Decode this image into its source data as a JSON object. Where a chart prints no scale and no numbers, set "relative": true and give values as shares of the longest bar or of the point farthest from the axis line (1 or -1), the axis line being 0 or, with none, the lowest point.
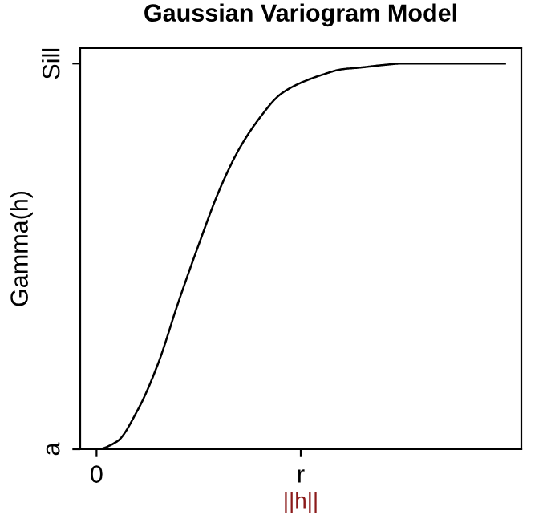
{
  "chart_data": {
    "type": "line",
    "title": "Gaussian Variogram Model",
    "xlabel": "||h||",
    "ylabel": "Gamma(h)",
    "relative": true,
    "categories": [
      "0",
      null,
      null,
      null,
      null,
      null,
      null,
      null,
      null,
      null,
      "r",
      null,
      null,
      null,
      null,
      null,
      null,
      null,
      null,
      null,
      null
    ],
    "series": [
      {
        "color": "#000000",
        "values": [
          0,
          0.02,
          0.1,
          0.22,
          0.38,
          0.53,
          0.67,
          0.78,
          0.86,
          0.92,
          0.95,
          0.97,
          0.985,
          0.99,
          0.996,
          1.0,
          1.0,
          1.0,
          1.0,
          1.0,
          1.0
        ]
      }
    ],
    "annotations": [
      "a",
      "Sill"
    ],
    "grid": false,
    "legend": false,
    "marker": "none",
    "line_style": "solid"
  }
}
